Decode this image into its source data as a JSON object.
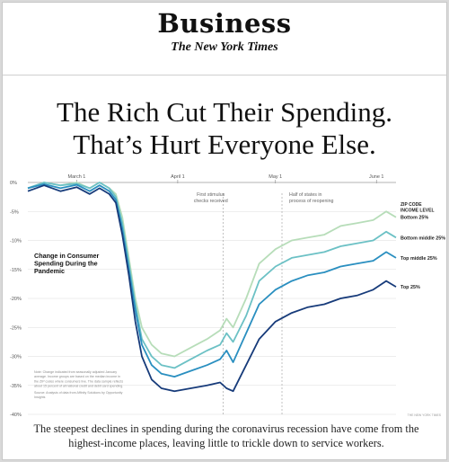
{
  "masthead": {
    "section": "Business",
    "publication": "The New York Times"
  },
  "headline": {
    "line1": "The Rich Cut Their Spending.",
    "line2": "That’s Hurt Everyone Else."
  },
  "caption": "The steepest declines in spending during the coronavirus recession have come from the highest-income places, leaving little to trickle down to service workers.",
  "chart_data": {
    "type": "line",
    "title": "Change in Consumer Spending During the Pandemic",
    "x_range": [
      "2020-02-15",
      "2020-06-07"
    ],
    "x_ticks": [
      {
        "date": "2020-03-01",
        "label": "March 1"
      },
      {
        "date": "2020-04-01",
        "label": "April 1"
      },
      {
        "date": "2020-05-01",
        "label": "May 1"
      },
      {
        "date": "2020-06-01",
        "label": "June 1"
      }
    ],
    "ylim": [
      -40,
      0
    ],
    "yticks": [
      0,
      -5,
      -10,
      -15,
      -20,
      -25,
      -30,
      -35,
      -40
    ],
    "y_tick_labels": [
      "0%",
      "-5%",
      "-10%",
      "-15%",
      "-20%",
      "-25%",
      "-30%",
      "-35%",
      "-40%"
    ],
    "grid": true,
    "legend_title": [
      "ZIP CODE",
      "INCOME LEVEL"
    ],
    "annotations": [
      {
        "text": [
          "First stimulus",
          "checks received"
        ],
        "date": "2020-04-15"
      },
      {
        "text": [
          "Half of states in",
          "process of reopening"
        ],
        "date": "2020-05-03"
      }
    ],
    "note": [
      "Note: Change indicated from seasonally adjusted January",
      "average. Income groups are based on the median income in",
      "the ZIP codes where consumers live. The data sample reflects",
      "about 15 percent of all national credit and debit card spending.",
      "Source: Analysis of data from Affinity Solutions by Opportunity",
      "Insights"
    ],
    "credit": "THE NEW YORK TIMES",
    "series": [
      {
        "name": "Bottom 25%",
        "color": "#b7ddb9",
        "x": [
          "2020-02-15",
          "2020-02-20",
          "2020-02-25",
          "2020-03-01",
          "2020-03-05",
          "2020-03-08",
          "2020-03-11",
          "2020-03-13",
          "2020-03-15",
          "2020-03-17",
          "2020-03-19",
          "2020-03-21",
          "2020-03-24",
          "2020-03-27",
          "2020-03-31",
          "2020-04-05",
          "2020-04-10",
          "2020-04-14",
          "2020-04-16",
          "2020-04-18",
          "2020-04-22",
          "2020-04-26",
          "2020-05-01",
          "2020-05-06",
          "2020-05-11",
          "2020-05-16",
          "2020-05-21",
          "2020-05-26",
          "2020-05-31",
          "2020-06-04",
          "2020-06-07"
        ],
        "values": [
          -1,
          0,
          -0.5,
          0,
          -1,
          0,
          -1,
          -2,
          -6,
          -13,
          -20,
          -25,
          -28,
          -29.5,
          -30,
          -28.5,
          -27,
          -25.5,
          -23.5,
          -25,
          -20,
          -14,
          -11.5,
          -10,
          -9.5,
          -9,
          -7.5,
          -7,
          -6.5,
          -5,
          -6
        ]
      },
      {
        "name": "Bottom middle 25%",
        "color": "#6cc1c5",
        "x": [
          "2020-02-15",
          "2020-02-20",
          "2020-02-25",
          "2020-03-01",
          "2020-03-05",
          "2020-03-08",
          "2020-03-11",
          "2020-03-13",
          "2020-03-15",
          "2020-03-17",
          "2020-03-19",
          "2020-03-21",
          "2020-03-24",
          "2020-03-27",
          "2020-03-31",
          "2020-04-05",
          "2020-04-10",
          "2020-04-14",
          "2020-04-16",
          "2020-04-18",
          "2020-04-22",
          "2020-04-26",
          "2020-05-01",
          "2020-05-06",
          "2020-05-11",
          "2020-05-16",
          "2020-05-21",
          "2020-05-26",
          "2020-05-31",
          "2020-06-04",
          "2020-06-07"
        ],
        "values": [
          -1,
          0,
          -0.5,
          -0.2,
          -1,
          0,
          -1,
          -2.5,
          -7,
          -14,
          -21,
          -27,
          -30,
          -31.5,
          -32,
          -30.5,
          -29,
          -28,
          -26,
          -27.5,
          -23,
          -17,
          -14.5,
          -13,
          -12.5,
          -12,
          -11,
          -10.5,
          -10,
          -8.5,
          -9.5
        ]
      },
      {
        "name": "Top middle 25%",
        "color": "#2a8fc0",
        "x": [
          "2020-02-15",
          "2020-02-20",
          "2020-02-25",
          "2020-03-01",
          "2020-03-05",
          "2020-03-08",
          "2020-03-11",
          "2020-03-13",
          "2020-03-15",
          "2020-03-17",
          "2020-03-19",
          "2020-03-21",
          "2020-03-24",
          "2020-03-27",
          "2020-03-31",
          "2020-04-05",
          "2020-04-10",
          "2020-04-14",
          "2020-04-16",
          "2020-04-18",
          "2020-04-22",
          "2020-04-26",
          "2020-05-01",
          "2020-05-06",
          "2020-05-11",
          "2020-05-16",
          "2020-05-21",
          "2020-05-26",
          "2020-05-31",
          "2020-06-04",
          "2020-06-07"
        ],
        "values": [
          -1,
          -0.3,
          -1,
          -0.4,
          -1.5,
          -0.5,
          -1.5,
          -3,
          -8,
          -15,
          -22,
          -28,
          -31.5,
          -33,
          -33.5,
          -32.5,
          -31.5,
          -30.5,
          -29,
          -31,
          -26,
          -21,
          -18.5,
          -17,
          -16,
          -15.5,
          -14.5,
          -14,
          -13.5,
          -12,
          -13
        ]
      },
      {
        "name": "Top 25%",
        "color": "#173b7a",
        "x": [
          "2020-02-15",
          "2020-02-20",
          "2020-02-25",
          "2020-03-01",
          "2020-03-05",
          "2020-03-08",
          "2020-03-11",
          "2020-03-13",
          "2020-03-15",
          "2020-03-17",
          "2020-03-19",
          "2020-03-21",
          "2020-03-24",
          "2020-03-27",
          "2020-03-31",
          "2020-04-05",
          "2020-04-10",
          "2020-04-14",
          "2020-04-16",
          "2020-04-18",
          "2020-04-22",
          "2020-04-26",
          "2020-05-01",
          "2020-05-06",
          "2020-05-11",
          "2020-05-16",
          "2020-05-21",
          "2020-05-26",
          "2020-05-31",
          "2020-06-04",
          "2020-06-07"
        ],
        "values": [
          -1.5,
          -0.5,
          -1.5,
          -0.8,
          -2,
          -1,
          -2,
          -3.5,
          -9,
          -16,
          -24,
          -30,
          -34,
          -35.5,
          -36,
          -35.5,
          -35,
          -34.5,
          -35.5,
          -36,
          -31.5,
          -27,
          -24,
          -22.5,
          -21.5,
          -21,
          -20,
          -19.5,
          -18.5,
          -17,
          -18
        ]
      }
    ]
  }
}
